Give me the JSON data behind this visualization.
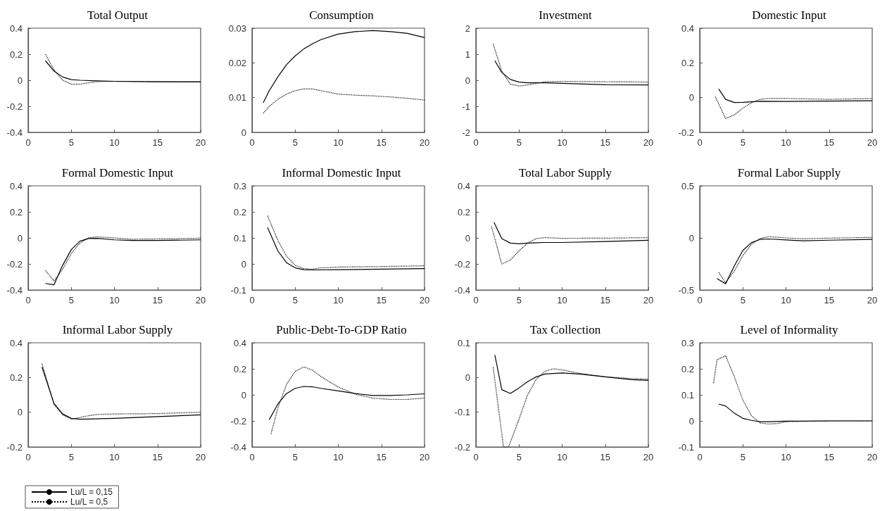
{
  "chart_data": [
    {
      "type": "line",
      "title": "Total Output",
      "xlim": [
        0,
        20
      ],
      "xticks": [
        0,
        5,
        10,
        15,
        20
      ],
      "ylim": [
        -0.4,
        0.4
      ],
      "yticks": [
        -0.4,
        -0.2,
        0,
        0.2,
        0.4
      ],
      "grid": false,
      "legend": false,
      "marker": "none",
      "series": [
        {
          "color": "#000000",
          "line_style": "solid",
          "x": [
            2,
            3,
            4,
            5,
            6,
            8,
            10,
            15,
            20
          ],
          "values": [
            0.15,
            0.07,
            0.025,
            0.005,
            0,
            -0.005,
            -0.008,
            -0.012,
            -0.013
          ]
        },
        {
          "color": "#000000",
          "line_style": "dotted",
          "x": [
            2,
            3,
            4,
            5,
            6,
            8,
            10,
            15,
            20
          ],
          "values": [
            0.2,
            0.08,
            0.0,
            -0.03,
            -0.03,
            -0.01,
            -0.008,
            -0.012,
            -0.012
          ]
        }
      ]
    },
    {
      "type": "line",
      "title": "Consumption",
      "xlim": [
        0,
        20
      ],
      "xticks": [
        0,
        5,
        10,
        15,
        20
      ],
      "ylim": [
        0,
        0.03
      ],
      "yticks": [
        0,
        0.01,
        0.02,
        0.03
      ],
      "grid": false,
      "legend": false,
      "marker": "none",
      "series": [
        {
          "color": "#000000",
          "line_style": "solid",
          "x": [
            1.3,
            2,
            3,
            4,
            5,
            6,
            7,
            8,
            10,
            12,
            14,
            16,
            18,
            20
          ],
          "values": [
            0.0085,
            0.012,
            0.016,
            0.0195,
            0.022,
            0.024,
            0.0255,
            0.0267,
            0.0283,
            0.029,
            0.0293,
            0.029,
            0.0285,
            0.0273
          ]
        },
        {
          "color": "#000000",
          "line_style": "dotted",
          "x": [
            1.3,
            2,
            3,
            4,
            5,
            6,
            7,
            8,
            10,
            12,
            14,
            16,
            18,
            20
          ],
          "values": [
            0.0055,
            0.0075,
            0.0095,
            0.011,
            0.012,
            0.0125,
            0.0125,
            0.012,
            0.011,
            0.0107,
            0.0105,
            0.0102,
            0.0098,
            0.0093
          ]
        }
      ]
    },
    {
      "type": "line",
      "title": "Investment",
      "xlim": [
        0,
        20
      ],
      "xticks": [
        0,
        5,
        10,
        15,
        20
      ],
      "ylim": [
        -2,
        2
      ],
      "yticks": [
        -2,
        -1,
        0,
        1,
        2
      ],
      "grid": false,
      "legend": false,
      "marker": "none",
      "series": [
        {
          "color": "#000000",
          "line_style": "solid",
          "x": [
            2.2,
            3,
            4,
            5,
            6,
            8,
            10,
            15,
            20
          ],
          "values": [
            0.75,
            0.3,
            0.03,
            -0.07,
            -0.1,
            -0.1,
            -0.12,
            -0.17,
            -0.18
          ]
        },
        {
          "color": "#000000",
          "line_style": "dotted",
          "x": [
            2,
            3,
            4,
            5,
            6,
            8,
            10,
            15,
            20
          ],
          "values": [
            1.4,
            0.35,
            -0.15,
            -0.22,
            -0.18,
            -0.06,
            -0.04,
            -0.06,
            -0.07
          ]
        }
      ]
    },
    {
      "type": "line",
      "title": "Domestic Input",
      "xlim": [
        0,
        20
      ],
      "xticks": [
        0,
        5,
        10,
        15,
        20
      ],
      "ylim": [
        -0.2,
        0.4
      ],
      "yticks": [
        -0.2,
        0,
        0.2,
        0.4
      ],
      "grid": false,
      "legend": false,
      "marker": "none",
      "series": [
        {
          "color": "#000000",
          "line_style": "solid",
          "x": [
            2.2,
            3,
            4,
            5,
            7,
            10,
            15,
            20
          ],
          "values": [
            0.05,
            -0.01,
            -0.028,
            -0.027,
            -0.021,
            -0.022,
            -0.02,
            -0.018
          ]
        },
        {
          "color": "#000000",
          "line_style": "dotted",
          "x": [
            1.8,
            3,
            4,
            5,
            6,
            7,
            8,
            10,
            15,
            20
          ],
          "values": [
            0.005,
            -0.12,
            -0.1,
            -0.06,
            -0.03,
            -0.01,
            -0.005,
            -0.005,
            -0.01,
            -0.005
          ]
        }
      ]
    },
    {
      "type": "line",
      "title": "Formal Domestic Input",
      "xlim": [
        0,
        20
      ],
      "xticks": [
        0,
        5,
        10,
        15,
        20
      ],
      "ylim": [
        -0.4,
        0.4
      ],
      "yticks": [
        -0.4,
        -0.2,
        0,
        0.2,
        0.4
      ],
      "grid": false,
      "legend": false,
      "marker": "none",
      "series": [
        {
          "color": "#000000",
          "line_style": "solid",
          "x": [
            2,
            3,
            4,
            5,
            6,
            7,
            8,
            10,
            12,
            15,
            20
          ],
          "values": [
            -0.35,
            -0.36,
            -0.21,
            -0.09,
            -0.025,
            -0.005,
            -0.003,
            -0.015,
            -0.02,
            -0.02,
            -0.015
          ]
        },
        {
          "color": "#000000",
          "line_style": "dotted",
          "x": [
            2,
            3,
            4,
            5,
            6,
            7,
            8,
            10,
            12,
            15,
            20
          ],
          "values": [
            -0.25,
            -0.33,
            -0.24,
            -0.12,
            -0.04,
            0,
            0.008,
            0,
            -0.01,
            -0.008,
            -0.002
          ]
        }
      ]
    },
    {
      "type": "line",
      "title": "Informal Domestic Input",
      "xlim": [
        0,
        20
      ],
      "xticks": [
        0,
        5,
        10,
        15,
        20
      ],
      "ylim": [
        -0.1,
        0.3
      ],
      "yticks": [
        -0.1,
        0,
        0.1,
        0.2,
        0.3
      ],
      "grid": false,
      "legend": false,
      "marker": "none",
      "series": [
        {
          "color": "#000000",
          "line_style": "solid",
          "x": [
            1.8,
            3,
            4,
            5,
            6,
            7,
            10,
            15,
            20
          ],
          "values": [
            0.14,
            0.05,
            0.005,
            -0.015,
            -0.022,
            -0.023,
            -0.022,
            -0.02,
            -0.018
          ]
        },
        {
          "color": "#000000",
          "line_style": "dotted",
          "x": [
            1.8,
            3,
            4,
            5,
            6,
            7,
            8,
            10,
            15,
            20
          ],
          "values": [
            0.185,
            0.09,
            0.03,
            -0.005,
            -0.018,
            -0.02,
            -0.015,
            -0.012,
            -0.01,
            -0.007
          ]
        }
      ]
    },
    {
      "type": "line",
      "title": "Total Labor Supply",
      "xlim": [
        0,
        20
      ],
      "xticks": [
        0,
        5,
        10,
        15,
        20
      ],
      "ylim": [
        -0.4,
        0.4
      ],
      "yticks": [
        -0.4,
        -0.2,
        0,
        0.2,
        0.4
      ],
      "grid": false,
      "legend": false,
      "marker": "none",
      "series": [
        {
          "color": "#000000",
          "line_style": "solid",
          "x": [
            2.1,
            3,
            4,
            5,
            6,
            8,
            10,
            15,
            20
          ],
          "values": [
            0.12,
            -0.005,
            -0.04,
            -0.045,
            -0.04,
            -0.035,
            -0.035,
            -0.028,
            -0.018
          ]
        },
        {
          "color": "#000000",
          "line_style": "dotted",
          "x": [
            1.8,
            3,
            4,
            5,
            6,
            7,
            8,
            10,
            15,
            20
          ],
          "values": [
            0.09,
            -0.2,
            -0.17,
            -0.1,
            -0.04,
            -0.005,
            0.002,
            -0.003,
            -0.002,
            0.002
          ]
        }
      ]
    },
    {
      "type": "line",
      "title": "Formal Labor Supply",
      "xlim": [
        0,
        20
      ],
      "xticks": [
        0,
        5,
        10,
        15,
        20
      ],
      "ylim": [
        -0.5,
        0.5
      ],
      "yticks": [
        -0.5,
        0,
        0.5
      ],
      "grid": false,
      "legend": false,
      "marker": "none",
      "series": [
        {
          "color": "#000000",
          "line_style": "solid",
          "x": [
            2,
            3,
            4,
            5,
            6,
            7,
            8,
            10,
            12,
            15,
            20
          ],
          "values": [
            -0.39,
            -0.44,
            -0.27,
            -0.12,
            -0.045,
            -0.015,
            -0.01,
            -0.02,
            -0.028,
            -0.022,
            -0.015
          ]
        },
        {
          "color": "#000000",
          "line_style": "dotted",
          "x": [
            2.2,
            3,
            4,
            5,
            6,
            7,
            8,
            10,
            12,
            15,
            20
          ],
          "values": [
            -0.33,
            -0.43,
            -0.32,
            -0.17,
            -0.06,
            -0.005,
            0.012,
            0,
            -0.008,
            -0.002,
            0.005
          ]
        }
      ]
    },
    {
      "type": "line",
      "title": "Informal Labor Supply",
      "xlim": [
        0,
        20
      ],
      "xticks": [
        0,
        5,
        10,
        15,
        20
      ],
      "ylim": [
        -0.2,
        0.4
      ],
      "yticks": [
        -0.2,
        0,
        0.2,
        0.4
      ],
      "grid": false,
      "legend": "bottom left",
      "marker": "none",
      "series": [
        {
          "name": "Lu/L = 0,15",
          "color": "#000000",
          "line_style": "solid",
          "x": [
            1.6,
            3,
            4,
            5,
            6,
            10,
            15,
            20
          ],
          "values": [
            0.26,
            0.05,
            -0.01,
            -0.035,
            -0.04,
            -0.035,
            -0.025,
            -0.015
          ]
        },
        {
          "name": "Lu/L = 0,5",
          "color": "#000000",
          "line_style": "dotted",
          "x": [
            1.6,
            3,
            4,
            5,
            6,
            7,
            8,
            10,
            15,
            20
          ],
          "values": [
            0.28,
            0.045,
            -0.015,
            -0.04,
            -0.03,
            -0.02,
            -0.013,
            -0.01,
            -0.008,
            0
          ]
        }
      ]
    },
    {
      "type": "line",
      "title": "Public-Debt-To-GDP Ratio",
      "xlim": [
        0,
        20
      ],
      "xticks": [
        0,
        5,
        10,
        15,
        20
      ],
      "ylim": [
        -0.4,
        0.4
      ],
      "yticks": [
        -0.4,
        -0.2,
        0,
        0.2,
        0.4
      ],
      "grid": false,
      "legend": false,
      "marker": "none",
      "series": [
        {
          "color": "#000000",
          "line_style": "solid",
          "x": [
            2,
            3,
            4,
            5,
            6,
            7,
            8,
            10,
            12,
            14,
            16,
            18,
            20
          ],
          "values": [
            -0.19,
            -0.07,
            0.01,
            0.05,
            0.065,
            0.062,
            0.05,
            0.03,
            0.01,
            -0.005,
            -0.005,
            0,
            0.008
          ]
        },
        {
          "color": "#000000",
          "line_style": "dotted",
          "x": [
            2.2,
            3,
            4,
            5,
            6,
            7,
            8,
            10,
            12,
            14,
            16,
            18,
            20
          ],
          "values": [
            -0.3,
            -0.1,
            0.08,
            0.18,
            0.215,
            0.19,
            0.14,
            0.06,
            0.005,
            -0.025,
            -0.035,
            -0.035,
            -0.025
          ]
        }
      ]
    },
    {
      "type": "line",
      "title": "Tax Collection",
      "xlim": [
        0,
        20
      ],
      "xticks": [
        0,
        5,
        10,
        15,
        20
      ],
      "ylim": [
        -0.2,
        0.1
      ],
      "yticks": [
        -0.2,
        -0.1,
        0,
        0.1
      ],
      "grid": false,
      "legend": false,
      "marker": "none",
      "series": [
        {
          "color": "#000000",
          "line_style": "solid",
          "x": [
            2.2,
            3,
            4,
            5,
            6,
            7,
            8,
            10,
            12,
            15,
            18,
            20
          ],
          "values": [
            0.065,
            -0.035,
            -0.046,
            -0.03,
            -0.012,
            0.002,
            0.01,
            0.013,
            0.01,
            0.002,
            -0.006,
            -0.008
          ]
        },
        {
          "color": "#000000",
          "line_style": "dotted",
          "x": [
            2,
            3.2,
            3.8,
            5,
            6,
            7,
            8,
            9,
            10,
            12,
            15,
            18,
            20
          ],
          "values": [
            0.03,
            -0.2,
            -0.2,
            -0.12,
            -0.05,
            -0.005,
            0.018,
            0.025,
            0.022,
            0.012,
            0.002,
            -0.003,
            -0.005
          ]
        }
      ]
    },
    {
      "type": "line",
      "title": "Level of Informality",
      "xlim": [
        0,
        20
      ],
      "xticks": [
        0,
        5,
        10,
        15,
        20
      ],
      "ylim": [
        -0.1,
        0.3
      ],
      "yticks": [
        -0.1,
        0,
        0.1,
        0.2,
        0.3
      ],
      "grid": false,
      "legend": false,
      "marker": "none",
      "series": [
        {
          "color": "#000000",
          "line_style": "solid",
          "x": [
            2.2,
            3,
            4,
            5,
            6,
            7,
            8,
            10,
            15,
            20
          ],
          "values": [
            0.065,
            0.057,
            0.03,
            0.01,
            0.002,
            -0.003,
            -0.003,
            -0.001,
            0,
            0
          ]
        },
        {
          "color": "#000000",
          "line_style": "dotted",
          "x": [
            1.6,
            2,
            3,
            4,
            5,
            6,
            7,
            8,
            9,
            10,
            15,
            20
          ],
          "values": [
            0.145,
            0.235,
            0.25,
            0.17,
            0.08,
            0.02,
            -0.008,
            -0.012,
            -0.01,
            -0.003,
            0,
            0
          ]
        }
      ]
    }
  ]
}
